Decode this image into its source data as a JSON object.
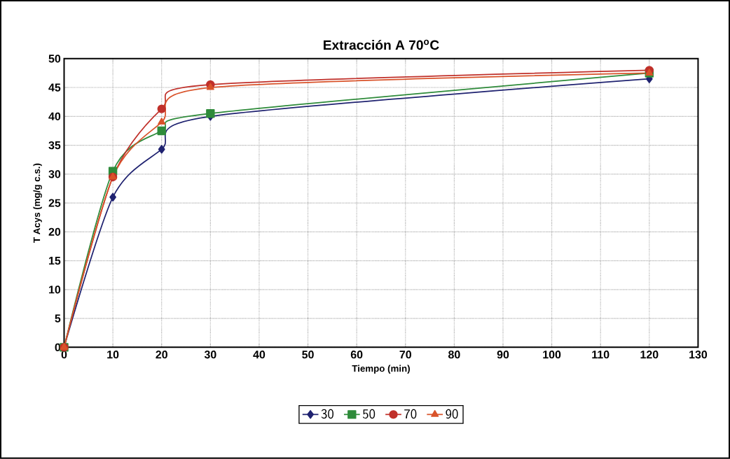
{
  "chart_data": {
    "type": "line",
    "title": "Extracción A 70$^{o}$C",
    "xlabel": "Tiempo (min)",
    "ylabel": "T Acys (mg/g c.s.)",
    "x": [
      0,
      10,
      20,
      30,
      120
    ],
    "series": [
      {
        "name": "30",
        "color": "#1f2270",
        "marker": "diamond",
        "values": [
          0,
          26,
          34.3,
          40,
          46.5
        ]
      },
      {
        "name": "50",
        "color": "#2e8b3a",
        "marker": "square",
        "values": [
          0,
          30.5,
          37.5,
          40.5,
          47.5
        ]
      },
      {
        "name": "70",
        "color": "#c0302a",
        "marker": "circle",
        "values": [
          0,
          29.5,
          41.3,
          45.5,
          48
        ]
      },
      {
        "name": "90",
        "color": "#d9532a",
        "marker": "triangle",
        "values": [
          0,
          29.5,
          39,
          45,
          47.5
        ]
      }
    ],
    "xlim": [
      0,
      130
    ],
    "xticks": [
      0,
      10,
      20,
      30,
      40,
      50,
      60,
      70,
      80,
      90,
      100,
      110,
      120,
      130
    ],
    "ylim": [
      0,
      50
    ],
    "yticks": [
      0,
      5,
      10,
      15,
      20,
      25,
      30,
      35,
      40,
      45,
      50
    ],
    "grid": true,
    "legend": "bottom",
    "line_style": "solid"
  }
}
